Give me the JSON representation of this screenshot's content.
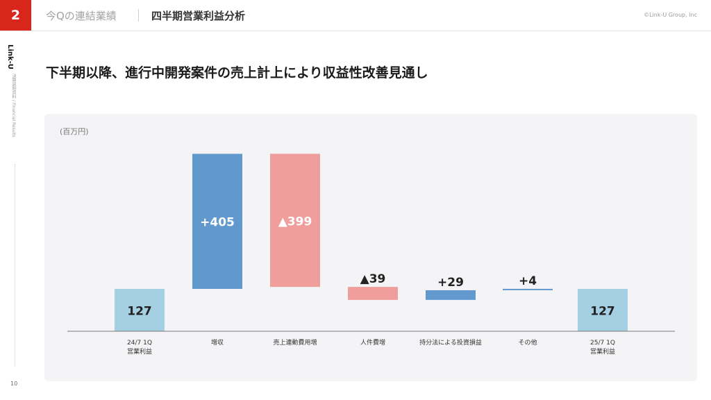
{
  "header": {
    "page_badge": "2",
    "section_title": "今Qの連結業績",
    "page_title": "四半期営業利益分析",
    "copyright": "©Link-U Group, Inc"
  },
  "sidebar": {
    "brand": "Link-U",
    "subtitle": "決算説明資料 / Financial Results",
    "page_number": "10"
  },
  "headline": "下半期以降、進行中開発案件の売上計上により収益性改善見通し",
  "chart_data": {
    "type": "bar",
    "subtype": "waterfall",
    "unit_label": "(百万円)",
    "categories": [
      "24/7 1Q\n営業利益",
      "増収",
      "売上連動費用増",
      "人件費増",
      "持分法による投資損益",
      "その他",
      "25/7 1Q\n営業利益"
    ],
    "values": [
      127,
      405,
      -399,
      -39,
      29,
      4,
      127
    ],
    "kinds": [
      "total",
      "delta",
      "delta",
      "delta",
      "delta",
      "delta",
      "total"
    ],
    "data_labels": [
      "127",
      "+405",
      "▲399",
      "▲39",
      "+29",
      "+4",
      "127"
    ],
    "colors": {
      "total": "#a5cfe2",
      "increase": "#6199cf",
      "decrease": "#f09e9b",
      "axis": "#7a7a7a"
    }
  }
}
